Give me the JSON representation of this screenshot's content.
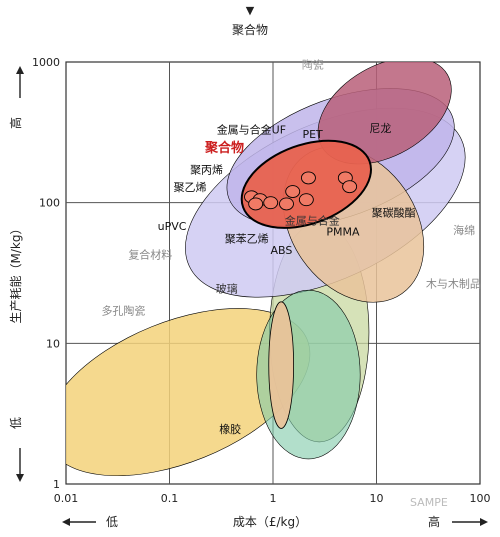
{
  "chart_data": {
    "type": "bubble-map",
    "top_label": "聚合物",
    "xlabel": "成本（£/kg）",
    "ylabel": "生产耗能（M/kg）",
    "x_low_label": "低",
    "x_high_label": "高",
    "y_low_label": "低",
    "y_high_label": "高",
    "x_scale": "log",
    "y_scale": "log",
    "xlim": [
      0.01,
      100
    ],
    "ylim": [
      1,
      1000
    ],
    "x_ticks": [
      {
        "value": 0.01,
        "label": "0.01"
      },
      {
        "value": 0.1,
        "label": "0.1"
      },
      {
        "value": 1,
        "label": "1"
      },
      {
        "value": 10,
        "label": "10"
      },
      {
        "value": 100,
        "label": "100"
      }
    ],
    "y_ticks": [
      {
        "value": 1,
        "label": "1"
      },
      {
        "value": 10,
        "label": "10"
      },
      {
        "value": 100,
        "label": "100"
      },
      {
        "value": 1000,
        "label": "1000"
      }
    ],
    "grid": true,
    "watermark": "SAMPE",
    "regions": [
      {
        "name": "多孔陶瓷",
        "color": "#f3d27a",
        "opacity": 0.85,
        "cx": 0.12,
        "cy": 4.5,
        "rx_dec": 1.35,
        "ry_dec": 0.5,
        "rot": -22,
        "label_x": 0.022,
        "label_y": 16,
        "label_color": "#888888"
      },
      {
        "name": "木与木制品",
        "color": "#c8d8a0",
        "opacity": 0.75,
        "cx": 2.8,
        "cy": 12,
        "rx_dec": 0.48,
        "ry_dec": 0.78,
        "rot": 0,
        "label_x": 30,
        "label_y": 25,
        "label_color": "#888888"
      },
      {
        "name": "复合材料",
        "color": "#cfcaf2",
        "opacity": 0.85,
        "cx": 3.2,
        "cy": 100,
        "rx_dec": 1.45,
        "ry_dec": 0.55,
        "rot": -25,
        "label_x": 0.04,
        "label_y": 40,
        "label_color": "#888888"
      },
      {
        "name": "陶瓷",
        "color": "#bfb5ea",
        "opacity": 0.85,
        "cx": 4.5,
        "cy": 210,
        "rx_dec": 1.15,
        "ry_dec": 0.42,
        "rot": -20,
        "label_x": 1.9,
        "label_y": 900,
        "label_color": "#999999"
      },
      {
        "name": "玻璃",
        "color": "#7fcaa8",
        "opacity": 0.6,
        "cx": 2.2,
        "cy": 6,
        "rx_dec": 0.5,
        "ry_dec": 0.6,
        "rot": 0,
        "label_x": 0.28,
        "label_y": 23,
        "label_color": "#333333"
      },
      {
        "name": "金属与合金",
        "color": "#e9c39a",
        "opacity": 0.85,
        "cx": 6,
        "cy": 70,
        "rx_dec": 0.6,
        "ry_dec": 0.6,
        "rot": -35,
        "label_x": 1.3,
        "label_y": 70,
        "label_color": "#333333"
      },
      {
        "name": "海绵",
        "color": "#b85f79",
        "opacity": 0.85,
        "cx": 12,
        "cy": 450,
        "rx_dec": 0.7,
        "ry_dec": 0.32,
        "rot": -30,
        "label_x": 55,
        "label_y": 60,
        "label_color": "#888888"
      },
      {
        "name": "聚合物",
        "color": "#e8624f",
        "opacity": 0.95,
        "cx": 2.1,
        "cy": 135,
        "rx_dec": 0.65,
        "ry_dec": 0.28,
        "rot": -20,
        "label_x": 0.22,
        "label_y": 230,
        "label_color": "#cc1f1f"
      }
    ],
    "series": [
      {
        "name": "聚乙烯",
        "x": 0.62,
        "y": 110
      },
      {
        "name": "聚丙烯",
        "x": 0.75,
        "y": 105
      },
      {
        "name": "uPVC",
        "x": 0.68,
        "y": 98
      },
      {
        "name": "聚苯乙烯",
        "x": 0.95,
        "y": 100
      },
      {
        "name": "ABS",
        "x": 1.35,
        "y": 98
      },
      {
        "name": "PMMA",
        "x": 2.1,
        "y": 105
      },
      {
        "name": "金属与合金UF",
        "x": 1.55,
        "y": 120
      },
      {
        "name": "PET",
        "x": 2.2,
        "y": 150
      },
      {
        "name": "尼龙",
        "x": 5,
        "y": 150
      },
      {
        "name": "聚碳酸酯",
        "x": 5.5,
        "y": 130
      },
      {
        "name": "橡胶",
        "x": 1.2,
        "y": 7
      }
    ]
  }
}
